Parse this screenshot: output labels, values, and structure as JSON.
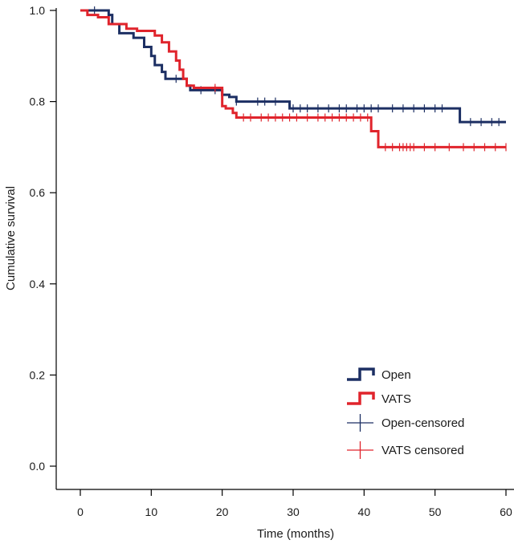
{
  "chart_data": {
    "type": "line",
    "subtype": "kaplan-meier",
    "title": "",
    "xlabel": "Time (months)",
    "ylabel": "Cumulative survival",
    "xlim": [
      0,
      60
    ],
    "ylim": [
      0.0,
      1.0
    ],
    "xticks": [
      "0",
      "10",
      "20",
      "30",
      "40",
      "50",
      "60"
    ],
    "yticks": [
      "0.0",
      "0.2",
      "0.4",
      "0.6",
      "0.8",
      "1.0"
    ],
    "grid": false,
    "legend_position": "bottom-right",
    "legend": [
      "Open",
      "VATS",
      "Open-censored",
      "VATS censored"
    ],
    "series": [
      {
        "name": "Open",
        "color": "#1c2f63",
        "steps": [
          [
            0,
            1.0
          ],
          [
            4,
            0.99
          ],
          [
            4.5,
            0.97
          ],
          [
            5.5,
            0.95
          ],
          [
            7.5,
            0.94
          ],
          [
            9,
            0.92
          ],
          [
            10,
            0.9
          ],
          [
            10.5,
            0.88
          ],
          [
            11.5,
            0.865
          ],
          [
            12,
            0.85
          ],
          [
            15,
            0.835
          ],
          [
            15.5,
            0.825
          ],
          [
            20,
            0.815
          ],
          [
            21,
            0.81
          ],
          [
            22,
            0.8
          ],
          [
            29.5,
            0.785
          ],
          [
            53.5,
            0.755
          ],
          [
            60,
            0.755
          ]
        ],
        "censored": [
          2,
          13.5,
          17,
          19,
          20,
          22,
          25,
          26,
          27.5,
          30,
          31,
          32,
          33.5,
          35,
          36.5,
          37.5,
          39,
          40,
          41,
          42,
          44,
          45.5,
          47,
          48.5,
          50,
          51,
          55,
          56.5,
          58,
          59
        ]
      },
      {
        "name": "VATS",
        "color": "#e0242c",
        "steps": [
          [
            0,
            1.0
          ],
          [
            1,
            0.99
          ],
          [
            2.5,
            0.985
          ],
          [
            4,
            0.97
          ],
          [
            6.5,
            0.96
          ],
          [
            8,
            0.955
          ],
          [
            10.5,
            0.945
          ],
          [
            11.5,
            0.93
          ],
          [
            12.5,
            0.91
          ],
          [
            13.5,
            0.89
          ],
          [
            14,
            0.87
          ],
          [
            14.5,
            0.85
          ],
          [
            15,
            0.835
          ],
          [
            16,
            0.83
          ],
          [
            20,
            0.79
          ],
          [
            20.5,
            0.785
          ],
          [
            21.5,
            0.775
          ],
          [
            22,
            0.765
          ],
          [
            41,
            0.735
          ],
          [
            42,
            0.7
          ],
          [
            60,
            0.7
          ]
        ],
        "censored": [
          19,
          23,
          24,
          25.5,
          26.5,
          27.5,
          28.5,
          29.5,
          30.5,
          32,
          33.5,
          34.5,
          35.5,
          36.5,
          37.5,
          38.5,
          39.5,
          40.5,
          43,
          44,
          45,
          45.5,
          46,
          46.5,
          47,
          48.5,
          50,
          52,
          54,
          55.5,
          57,
          58.5,
          60
        ]
      }
    ]
  }
}
